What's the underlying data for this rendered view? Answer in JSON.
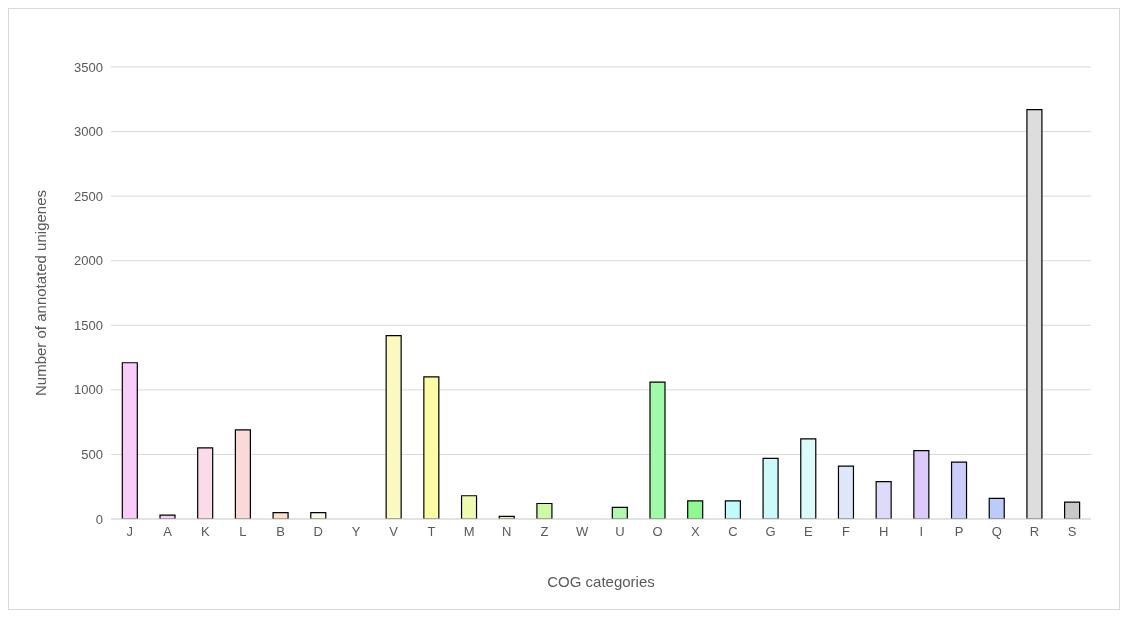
{
  "chart_data": {
    "type": "bar",
    "xlabel": "COG categories",
    "ylabel": "Number of annotated unigenes",
    "categories": [
      "J",
      "A",
      "K",
      "L",
      "B",
      "D",
      "Y",
      "V",
      "T",
      "M",
      "N",
      "Z",
      "W",
      "U",
      "O",
      "X",
      "C",
      "G",
      "E",
      "F",
      "H",
      "I",
      "P",
      "Q",
      "R",
      "S"
    ],
    "values": [
      1210,
      30,
      550,
      690,
      50,
      50,
      0,
      1420,
      1100,
      180,
      20,
      120,
      0,
      90,
      1060,
      140,
      140,
      470,
      620,
      410,
      290,
      530,
      440,
      160,
      3170,
      130
    ],
    "colors": [
      "#f9ccf9",
      "#f2d0f2",
      "#fbdaea",
      "#fad9d9",
      "#fde0cc",
      "#fafae0",
      "#fcfcdc",
      "#fafac0",
      "#fbfba6",
      "#eefab0",
      "#e0f8a8",
      "#ccfaa6",
      "#c0f8b0",
      "#b0f8b0",
      "#a0faa8",
      "#90f890",
      "#c0fafa",
      "#ccfafa",
      "#dcfafa",
      "#dce8fa",
      "#dcdcfa",
      "#dccafa",
      "#ccccfa",
      "#bcccfa",
      "#dddddd",
      "#c8c8c8"
    ],
    "ylim": [
      0,
      3500
    ],
    "yticks": [
      0,
      500,
      1000,
      1500,
      2000,
      2500,
      3000,
      3500
    ],
    "grid": "y"
  }
}
